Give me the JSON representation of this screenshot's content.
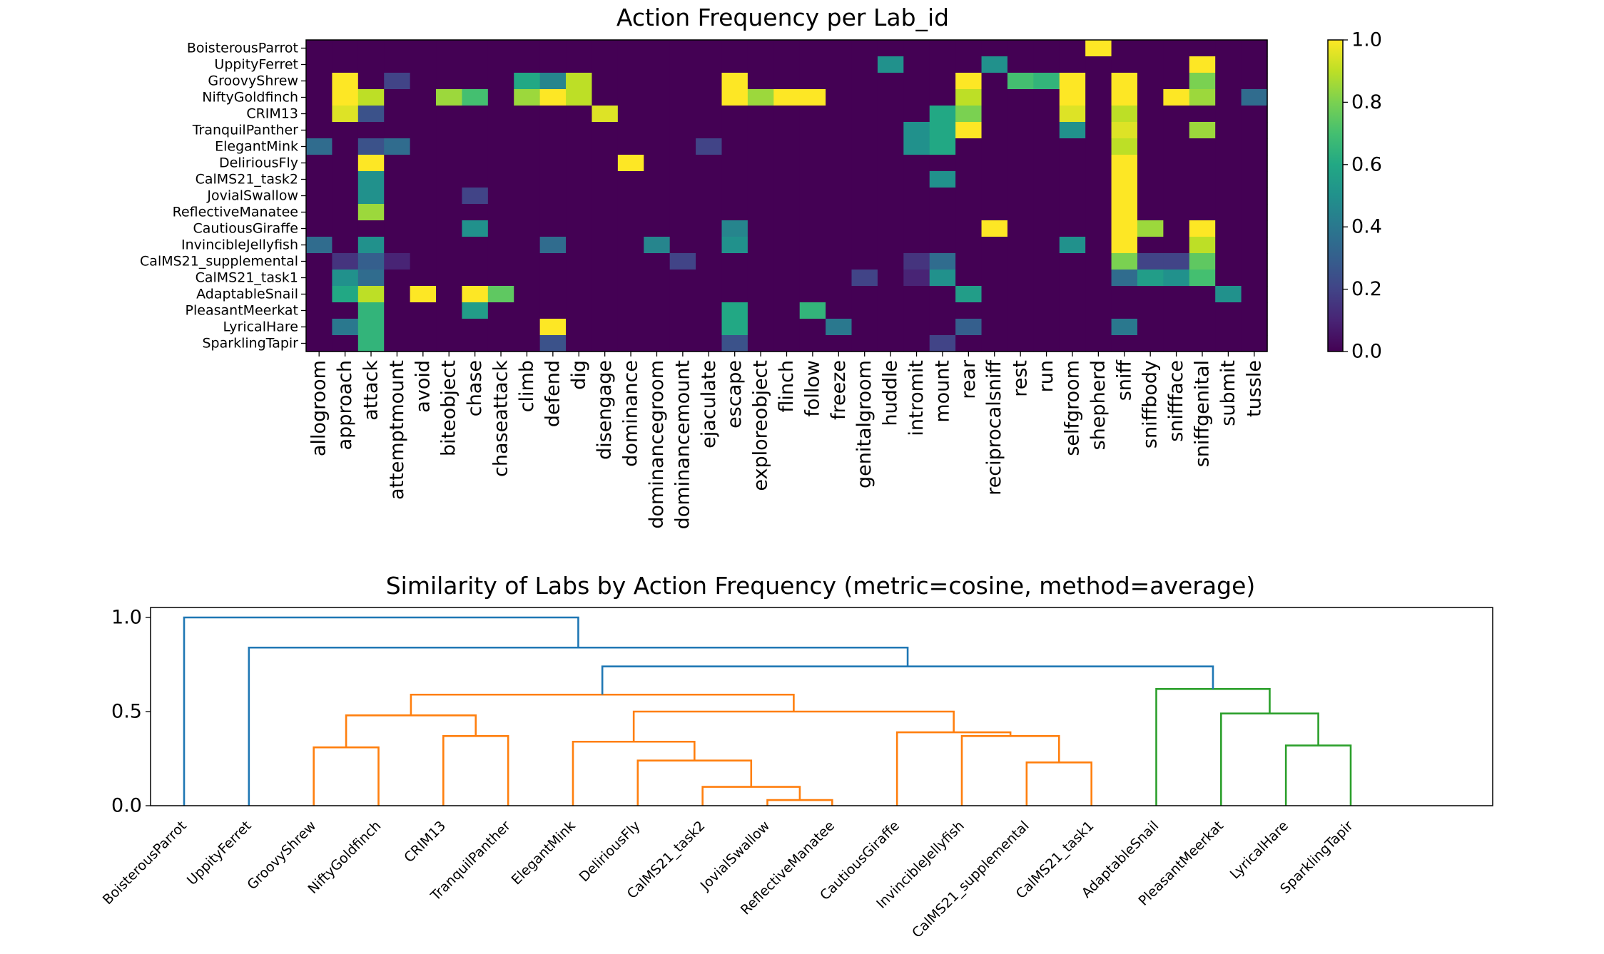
{
  "chart_data": [
    {
      "type": "heatmap",
      "title": "Action Frequency per Lab_id",
      "rows": [
        "BoisterousParrot",
        "UppityFerret",
        "GroovyShrew",
        "NiftyGoldfinch",
        "CRIM13",
        "TranquilPanther",
        "ElegantMink",
        "DeliriousFly",
        "CalMS21_task2",
        "JovialSwallow",
        "ReflectiveManatee",
        "CautiousGiraffe",
        "InvincibleJellyfish",
        "CalMS21_supplemental",
        "CalMS21_task1",
        "AdaptableSnail",
        "PleasantMeerkat",
        "LyricalHare",
        "SparklingTapir"
      ],
      "columns": [
        "allogroom",
        "approach",
        "attack",
        "attemptmount",
        "avoid",
        "biteobject",
        "chase",
        "chaseattack",
        "climb",
        "defend",
        "dig",
        "disengage",
        "dominance",
        "dominancegroom",
        "dominancemount",
        "ejaculate",
        "escape",
        "exploreobject",
        "flinch",
        "follow",
        "freeze",
        "genitalgroom",
        "huddle",
        "intromit",
        "mount",
        "rear",
        "reciprocalsniff",
        "rest",
        "run",
        "selfgroom",
        "shepherd",
        "sniff",
        "sniffbody",
        "sniffface",
        "sniffgenital",
        "submit",
        "tussle"
      ],
      "values": [
        [
          0,
          0,
          0,
          0,
          0,
          0,
          0,
          0,
          0,
          0,
          0,
          0,
          0,
          0,
          0,
          0,
          0,
          0,
          0,
          0,
          0,
          0,
          0,
          0,
          0,
          0,
          0,
          0,
          0,
          0,
          1.0,
          0,
          0,
          0,
          0,
          0,
          0
        ],
        [
          0,
          0,
          0,
          0,
          0,
          0,
          0,
          0,
          0,
          0,
          0,
          0,
          0,
          0,
          0,
          0,
          0,
          0,
          0,
          0,
          0,
          0,
          0.5,
          0,
          0,
          0,
          0.5,
          0,
          0,
          0,
          0,
          0,
          0,
          0,
          1.0,
          0,
          0
        ],
        [
          0,
          1.0,
          0,
          0.2,
          0,
          0,
          0,
          0,
          0.6,
          0.45,
          0.9,
          0,
          0,
          0,
          0,
          0,
          1.0,
          0,
          0,
          0,
          0,
          0,
          0,
          0,
          0,
          1.0,
          0,
          0.7,
          0.65,
          1.0,
          0,
          1.0,
          0,
          0,
          0.8,
          0,
          0
        ],
        [
          0,
          1.0,
          0.9,
          0,
          0,
          0.85,
          0.7,
          0,
          0.85,
          1.0,
          0.9,
          0,
          0,
          0,
          0,
          0,
          1.0,
          0.85,
          1.0,
          1.0,
          0,
          0,
          0,
          0,
          0,
          0.9,
          0,
          0,
          0,
          1.0,
          0,
          1.0,
          0,
          1.0,
          0.85,
          0,
          0.35
        ],
        [
          0,
          0.95,
          0.25,
          0,
          0,
          0,
          0,
          0,
          0,
          0,
          0,
          0.95,
          0,
          0,
          0,
          0,
          0,
          0,
          0,
          0,
          0,
          0,
          0,
          0,
          0.6,
          0.8,
          0,
          0,
          0,
          0.95,
          0,
          0.9,
          0,
          0,
          0,
          0,
          0
        ],
        [
          0,
          0,
          0,
          0,
          0,
          0,
          0,
          0,
          0,
          0,
          0,
          0,
          0,
          0,
          0,
          0,
          0,
          0,
          0,
          0,
          0,
          0,
          0,
          0.5,
          0.6,
          1.0,
          0,
          0,
          0,
          0.5,
          0,
          0.95,
          0,
          0,
          0.85,
          0,
          0
        ],
        [
          0.35,
          0,
          0.25,
          0.35,
          0,
          0,
          0,
          0,
          0,
          0,
          0,
          0,
          0,
          0,
          0,
          0.2,
          0,
          0,
          0,
          0,
          0,
          0,
          0,
          0.5,
          0.6,
          0,
          0,
          0,
          0,
          0,
          0,
          0.9,
          0,
          0,
          0,
          0,
          0
        ],
        [
          0,
          0,
          1.0,
          0,
          0,
          0,
          0,
          0,
          0,
          0,
          0,
          0,
          1.0,
          0,
          0,
          0,
          0,
          0,
          0,
          0,
          0,
          0,
          0,
          0,
          0,
          0,
          0,
          0,
          0,
          0,
          0,
          1.0,
          0,
          0,
          0,
          0,
          0
        ],
        [
          0,
          0,
          0.5,
          0,
          0,
          0,
          0,
          0,
          0,
          0,
          0,
          0,
          0,
          0,
          0,
          0,
          0,
          0,
          0,
          0,
          0,
          0,
          0,
          0,
          0.5,
          0,
          0,
          0,
          0,
          0,
          0,
          1.0,
          0,
          0,
          0,
          0,
          0
        ],
        [
          0,
          0,
          0.5,
          0,
          0,
          0,
          0.2,
          0,
          0,
          0,
          0,
          0,
          0,
          0,
          0,
          0,
          0,
          0,
          0,
          0,
          0,
          0,
          0,
          0,
          0,
          0,
          0,
          0,
          0,
          0,
          0,
          1.0,
          0,
          0,
          0,
          0,
          0
        ],
        [
          0,
          0,
          0.85,
          0,
          0,
          0,
          0,
          0,
          0,
          0,
          0,
          0,
          0,
          0,
          0,
          0,
          0,
          0,
          0,
          0,
          0,
          0,
          0,
          0,
          0,
          0,
          0,
          0,
          0,
          0,
          0,
          1.0,
          0,
          0,
          0,
          0,
          0
        ],
        [
          0,
          0,
          0,
          0,
          0,
          0,
          0.5,
          0,
          0,
          0,
          0,
          0,
          0,
          0,
          0,
          0,
          0.45,
          0,
          0,
          0,
          0,
          0,
          0,
          0,
          0,
          0,
          1.0,
          0,
          0,
          0,
          0,
          1.0,
          0.85,
          0,
          1.0,
          0,
          0
        ],
        [
          0.35,
          0,
          0.5,
          0,
          0,
          0,
          0,
          0,
          0,
          0.35,
          0,
          0,
          0,
          0.45,
          0,
          0,
          0.5,
          0,
          0,
          0,
          0,
          0,
          0,
          0,
          0,
          0,
          0,
          0,
          0,
          0.5,
          0,
          1.0,
          0,
          0,
          0.9,
          0,
          0
        ],
        [
          0,
          0.15,
          0.3,
          0.1,
          0,
          0,
          0,
          0,
          0,
          0,
          0,
          0,
          0,
          0,
          0.2,
          0,
          0,
          0,
          0,
          0,
          0,
          0,
          0,
          0.15,
          0.35,
          0,
          0,
          0,
          0,
          0,
          0,
          0.8,
          0.2,
          0.2,
          0.75,
          0,
          0
        ],
        [
          0,
          0.5,
          0.35,
          0,
          0,
          0,
          0,
          0,
          0,
          0,
          0,
          0,
          0,
          0,
          0,
          0,
          0,
          0,
          0,
          0,
          0,
          0.2,
          0,
          0.1,
          0.5,
          0,
          0,
          0,
          0,
          0,
          0,
          0.35,
          0.55,
          0.5,
          0.7,
          0,
          0
        ],
        [
          0,
          0.6,
          0.9,
          0,
          1.0,
          0,
          1.0,
          0.75,
          0,
          0,
          0,
          0,
          0,
          0,
          0,
          0,
          0,
          0,
          0,
          0,
          0,
          0,
          0,
          0,
          0,
          0.55,
          0,
          0,
          0,
          0,
          0,
          0,
          0,
          0,
          0,
          0.5,
          0
        ],
        [
          0,
          0,
          0.65,
          0,
          0,
          0,
          0.55,
          0,
          0,
          0,
          0,
          0,
          0,
          0,
          0,
          0,
          0.6,
          0,
          0,
          0.65,
          0,
          0,
          0,
          0,
          0,
          0,
          0,
          0,
          0,
          0,
          0,
          0,
          0,
          0,
          0,
          0,
          0
        ],
        [
          0,
          0.4,
          0.65,
          0,
          0,
          0,
          0,
          0,
          0,
          1.0,
          0,
          0,
          0,
          0,
          0,
          0,
          0.6,
          0,
          0,
          0,
          0.4,
          0,
          0,
          0,
          0,
          0.3,
          0,
          0,
          0,
          0,
          0,
          0.4,
          0,
          0,
          0,
          0,
          0
        ],
        [
          0,
          0,
          0.65,
          0,
          0,
          0,
          0,
          0,
          0,
          0.25,
          0,
          0,
          0,
          0,
          0,
          0,
          0.25,
          0,
          0,
          0,
          0,
          0,
          0,
          0,
          0.2,
          0,
          0,
          0,
          0,
          0,
          0,
          0,
          0,
          0,
          0,
          0,
          0
        ]
      ],
      "colorscale": "viridis",
      "colorbar": {
        "range": [
          0,
          1.0
        ],
        "ticks": [
          "0.0",
          "0.2",
          "0.4",
          "0.6",
          "0.8",
          "1.0"
        ]
      }
    },
    {
      "type": "dendrogram",
      "title": "Similarity of Labs by Action Frequency  (metric=cosine, method=average)",
      "leaves": [
        "BoisterousParrot",
        "UppityFerret",
        "GroovyShrew",
        "NiftyGoldfinch",
        "CRIM13",
        "TranquilPanther",
        "ElegantMink",
        "DeliriousFly",
        "CalMS21_task2",
        "JovialSwallow",
        "ReflectiveManatee",
        "CautiousGiraffe",
        "InvincibleJellyfish",
        "CalMS21_supplemental",
        "CalMS21_task1",
        "AdaptableSnail",
        "PleasantMeerkat",
        "LyricalHare",
        "SparklingTapir"
      ],
      "ylim": [
        0,
        1.0
      ],
      "yticks": [
        "0.0",
        "0.5",
        "1.0"
      ],
      "colors": {
        "root": "#1f77b4",
        "cluster1": "#ff7f0e",
        "cluster2": "#2ca02c"
      },
      "merges": [
        {
          "a": "L2",
          "b": "L3",
          "h": 0.31,
          "id": "c1",
          "color": "cluster1"
        },
        {
          "a": "L4",
          "b": "L5",
          "h": 0.37,
          "id": "c2",
          "color": "cluster1"
        },
        {
          "a": "c1",
          "b": "c2",
          "h": 0.48,
          "id": "c3",
          "color": "cluster1"
        },
        {
          "a": "L9",
          "b": "L10",
          "h": 0.03,
          "id": "c4",
          "color": "cluster1"
        },
        {
          "a": "L8",
          "b": "c4",
          "h": 0.1,
          "id": "c5",
          "color": "cluster1"
        },
        {
          "a": "L7",
          "b": "c5",
          "h": 0.24,
          "id": "c6",
          "color": "cluster1"
        },
        {
          "a": "L6",
          "b": "c6",
          "h": 0.34,
          "id": "c7",
          "color": "cluster1"
        },
        {
          "a": "L13",
          "b": "L14",
          "h": 0.23,
          "id": "c8",
          "color": "cluster1"
        },
        {
          "a": "L12",
          "b": "c8",
          "h": 0.37,
          "id": "c9",
          "color": "cluster1"
        },
        {
          "a": "L11",
          "b": "c9",
          "h": 0.39,
          "id": "c10",
          "color": "cluster1"
        },
        {
          "a": "c7",
          "b": "c10",
          "h": 0.5,
          "id": "c11",
          "color": "cluster1"
        },
        {
          "a": "c3",
          "b": "c11",
          "h": 0.59,
          "id": "c12",
          "color": "cluster1"
        },
        {
          "a": "L17",
          "b": "L18",
          "h": 0.32,
          "id": "c13",
          "color": "cluster2"
        },
        {
          "a": "L16",
          "b": "c13",
          "h": 0.49,
          "id": "c14",
          "color": "cluster2"
        },
        {
          "a": "L15",
          "b": "c14",
          "h": 0.62,
          "id": "c15",
          "color": "cluster2"
        },
        {
          "a": "c12",
          "b": "c15",
          "h": 0.74,
          "id": "c16",
          "color": "root"
        },
        {
          "a": "L1",
          "b": "c16",
          "h": 0.84,
          "id": "c17",
          "color": "root"
        },
        {
          "a": "L0",
          "b": "c17",
          "h": 1.0,
          "id": "c18",
          "color": "root"
        }
      ]
    }
  ]
}
